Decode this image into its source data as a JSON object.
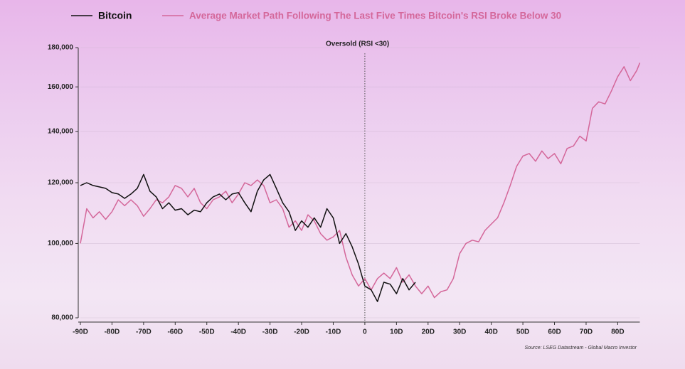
{
  "chart_data": {
    "type": "line",
    "legend_position": "top",
    "annotation": {
      "text": "Oversold (RSI <30)",
      "x": 0
    },
    "source": "Source: LSEG Datastream - Global Macro Investor",
    "log_y": true,
    "grid": true,
    "xlim": [
      -90,
      87
    ],
    "ylim": [
      80000,
      180000
    ],
    "xticks": [
      {
        "value": -90,
        "label": "-90D"
      },
      {
        "value": -80,
        "label": "-80D"
      },
      {
        "value": -70,
        "label": "-70D"
      },
      {
        "value": -60,
        "label": "-60D"
      },
      {
        "value": -50,
        "label": "-50D"
      },
      {
        "value": -40,
        "label": "-40D"
      },
      {
        "value": -30,
        "label": "-30D"
      },
      {
        "value": -20,
        "label": "-20D"
      },
      {
        "value": -10,
        "label": "-10D"
      },
      0,
      {
        "value": 10,
        "label": "10D"
      },
      {
        "value": 20,
        "label": "20D"
      },
      {
        "value": 30,
        "label": "30D"
      },
      {
        "value": 40,
        "label": "40D"
      },
      {
        "value": 50,
        "label": "50D"
      },
      {
        "value": 60,
        "label": "60D"
      },
      {
        "value": 70,
        "label": "70D"
      },
      {
        "value": 80,
        "label": "80D"
      }
    ],
    "yticks": [
      {
        "value": 80000,
        "label": "80,000"
      },
      {
        "value": 100000,
        "label": "100,000"
      },
      {
        "value": 120000,
        "label": "120,000"
      },
      {
        "value": 140000,
        "label": "140,000"
      },
      {
        "value": 160000,
        "label": "160,000"
      },
      {
        "value": 180000,
        "label": "180,000"
      }
    ],
    "series": [
      {
        "name": "Bitcoin",
        "color": "#111111",
        "x": [
          -90,
          -88,
          -86,
          -84,
          -82,
          -80,
          -78,
          -76,
          -74,
          -72,
          -70,
          -68,
          -66,
          -64,
          -62,
          -60,
          -58,
          -56,
          -54,
          -52,
          -50,
          -48,
          -46,
          -44,
          -42,
          -40,
          -38,
          -36,
          -34,
          -32,
          -30,
          -28,
          -26,
          -24,
          -22,
          -20,
          -18,
          -16,
          -14,
          -12,
          -10,
          -8,
          -6,
          -4,
          -2,
          0,
          2,
          4,
          6,
          8,
          10,
          12,
          14,
          16
        ],
        "values": [
          119000,
          120000,
          119000,
          118500,
          118000,
          116500,
          116000,
          114500,
          116000,
          118000,
          123000,
          117000,
          115000,
          111000,
          113000,
          110500,
          111000,
          109000,
          110500,
          110000,
          113000,
          115000,
          116000,
          114000,
          116000,
          116500,
          113000,
          110000,
          117000,
          121000,
          123000,
          118000,
          113000,
          110000,
          104000,
          107000,
          105000,
          108000,
          105000,
          111000,
          108000,
          100000,
          103000,
          99000,
          94000,
          88000,
          87000,
          84000,
          89000,
          88500,
          86000,
          90000,
          87000,
          89000
        ]
      },
      {
        "name": "Average Market Path Following The Last Five Times Bitcoin's RSI Broke Below 30",
        "color": "#d4679a",
        "x": [
          -90,
          -88,
          -86,
          -84,
          -82,
          -80,
          -78,
          -76,
          -74,
          -72,
          -70,
          -68,
          -66,
          -64,
          -62,
          -60,
          -58,
          -56,
          -54,
          -52,
          -50,
          -48,
          -46,
          -44,
          -42,
          -40,
          -38,
          -36,
          -34,
          -32,
          -30,
          -28,
          -26,
          -24,
          -22,
          -20,
          -18,
          -16,
          -14,
          -12,
          -10,
          -8,
          -6,
          -4,
          -2,
          0,
          2,
          4,
          6,
          8,
          10,
          12,
          14,
          16,
          18,
          20,
          22,
          24,
          26,
          28,
          30,
          32,
          34,
          36,
          38,
          40,
          42,
          44,
          46,
          48,
          50,
          52,
          54,
          56,
          58,
          60,
          62,
          64,
          66,
          68,
          70,
          72,
          74,
          76,
          78,
          80,
          82,
          84,
          86,
          87
        ],
        "values": [
          100000,
          111000,
          108000,
          110000,
          107500,
          110000,
          114000,
          112000,
          114000,
          112000,
          108500,
          111000,
          114000,
          113000,
          115000,
          119000,
          118000,
          115000,
          118000,
          113000,
          111000,
          114000,
          115000,
          117000,
          113000,
          116000,
          120000,
          119000,
          121000,
          119000,
          113000,
          114000,
          111000,
          105000,
          107000,
          104000,
          109000,
          107000,
          103000,
          101000,
          102000,
          104000,
          96000,
          91000,
          88000,
          90000,
          87000,
          90000,
          91500,
          90000,
          93000,
          89000,
          91000,
          88000,
          86000,
          88000,
          85000,
          86500,
          87000,
          90000,
          97000,
          100000,
          101000,
          100500,
          104000,
          106000,
          108000,
          113000,
          119000,
          126000,
          130000,
          131000,
          128000,
          132000,
          129000,
          131000,
          127000,
          133000,
          134000,
          138000,
          136000,
          150000,
          153000,
          152000,
          158000,
          165000,
          170000,
          163000,
          168000,
          172000
        ]
      }
    ]
  }
}
